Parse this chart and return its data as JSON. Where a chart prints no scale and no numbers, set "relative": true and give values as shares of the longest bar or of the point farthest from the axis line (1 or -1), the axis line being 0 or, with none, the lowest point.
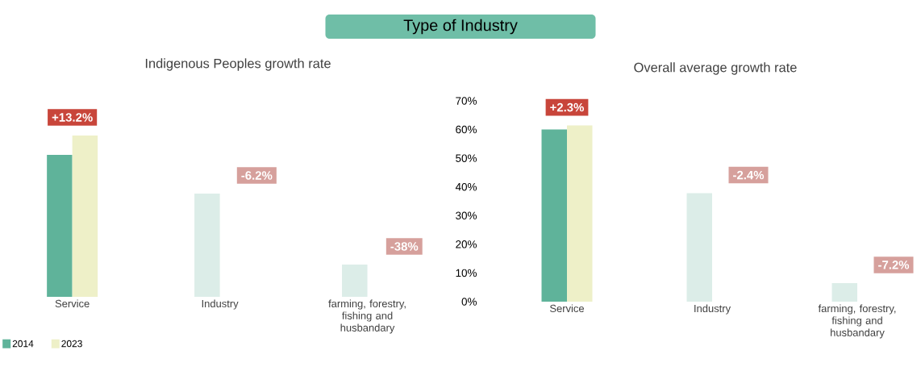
{
  "chart_data": [
    {
      "type": "bar",
      "title": "Type of Industry",
      "subtitle": "Indigenous Peoples growth rate",
      "relative": true,
      "categories": [
        "Service",
        "Industry",
        "farming, forestry, fishing and husbandary"
      ],
      "series": [
        {
          "name": "2014",
          "color": "#5fb39a",
          "colors": [
            "#5fb39a",
            "#dcede8",
            "#dcede8"
          ],
          "values": [
            0.88,
            0.64,
            0.2
          ]
        },
        {
          "name": "2023",
          "color": "#eef0c8",
          "colors": [
            "#eef0c8",
            "#ffffff",
            "#ffffff"
          ],
          "values": [
            1,
            null,
            null
          ]
        }
      ],
      "annotations": [
        "+13.2%",
        "-6.2%",
        "-38%"
      ],
      "legend": "bottom left",
      "grid": false
    },
    {
      "type": "bar",
      "title": "Overall average growth rate",
      "categories": [
        "Service",
        "Industry",
        "farming, forestry, fishing and husbandary"
      ],
      "series": [
        {
          "colors": [
            "#5fb39a",
            "#dcede8",
            "#dcede8"
          ],
          "values": [
            60,
            37.8,
            6.5
          ]
        },
        {
          "colors": [
            "#eef0c8",
            "#ffffff",
            "#ffffff"
          ],
          "values": [
            61.4,
            null,
            null
          ]
        }
      ],
      "ylim": [
        0,
        70
      ],
      "yticks": [
        {
          "value": 0,
          "label": "0%"
        },
        {
          "value": 10,
          "label": "10%"
        },
        {
          "value": 20,
          "label": "20%"
        },
        {
          "value": 30,
          "label": "30%"
        },
        {
          "value": 40,
          "label": "40%"
        },
        {
          "value": 50,
          "label": "50%"
        },
        {
          "value": 60,
          "label": "60%"
        },
        {
          "value": 70,
          "label": "70%"
        }
      ],
      "annotations": [
        "+2.3%",
        "-2.4%",
        "-7.2%"
      ],
      "legend": false,
      "grid": false
    }
  ]
}
